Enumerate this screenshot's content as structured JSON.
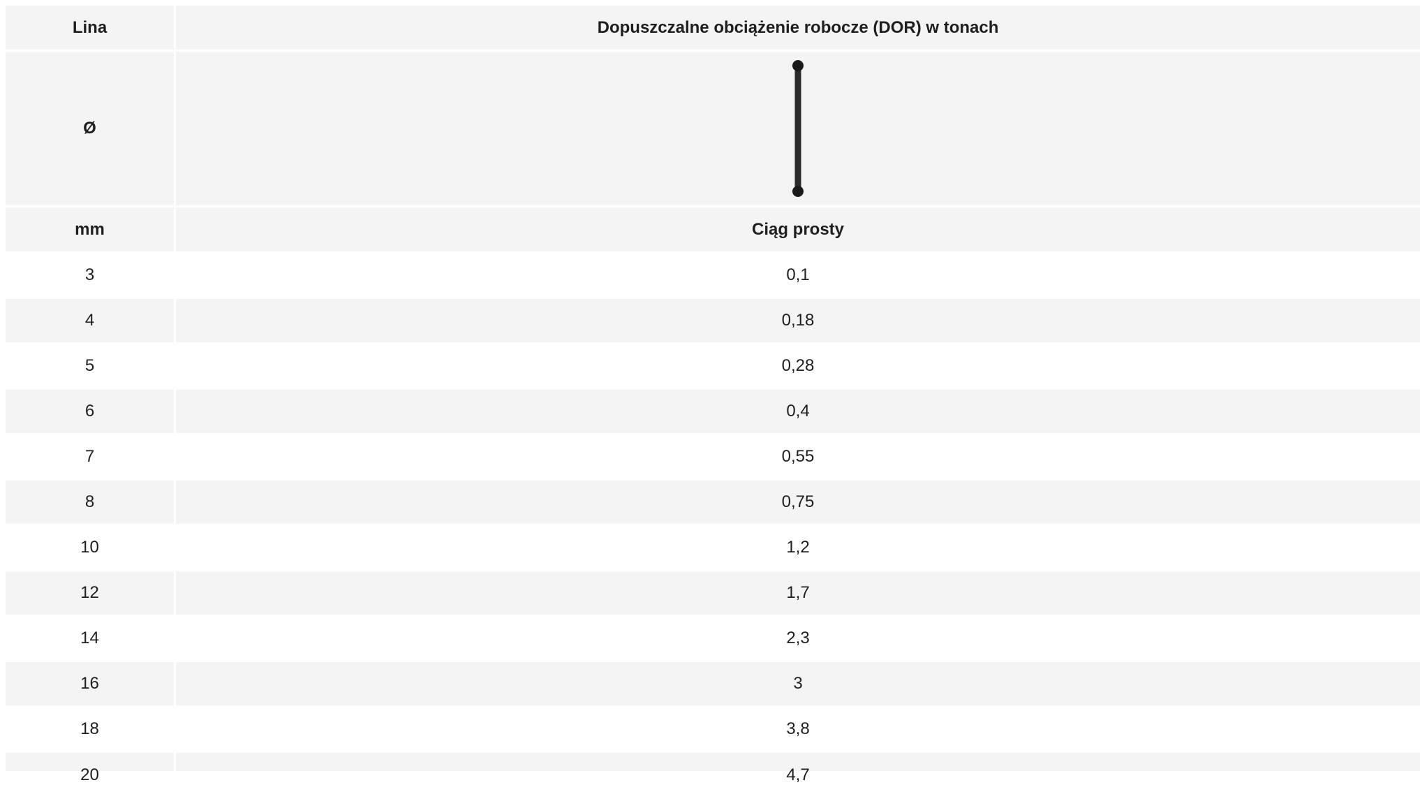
{
  "header": {
    "col1_title": "Lina",
    "col2_title": "Dopuszczalne obciążenie robocze (DOR) w tonach",
    "diameter_symbol": "Ø",
    "sling_icon": "straight-pull-sling-icon",
    "unit": "mm",
    "pull_type": "Ciąg prosty"
  },
  "rows": [
    {
      "diameter": "3",
      "wll": "0,1"
    },
    {
      "diameter": "4",
      "wll": "0,18"
    },
    {
      "diameter": "5",
      "wll": "0,28"
    },
    {
      "diameter": "6",
      "wll": "0,4"
    },
    {
      "diameter": "7",
      "wll": "0,55"
    },
    {
      "diameter": "8",
      "wll": "0,75"
    },
    {
      "diameter": "10",
      "wll": "1,2"
    },
    {
      "diameter": "12",
      "wll": "1,7"
    },
    {
      "diameter": "14",
      "wll": "2,3"
    },
    {
      "diameter": "16",
      "wll": "3"
    },
    {
      "diameter": "18",
      "wll": "3,8"
    },
    {
      "diameter": "20",
      "wll": "4,7"
    }
  ]
}
